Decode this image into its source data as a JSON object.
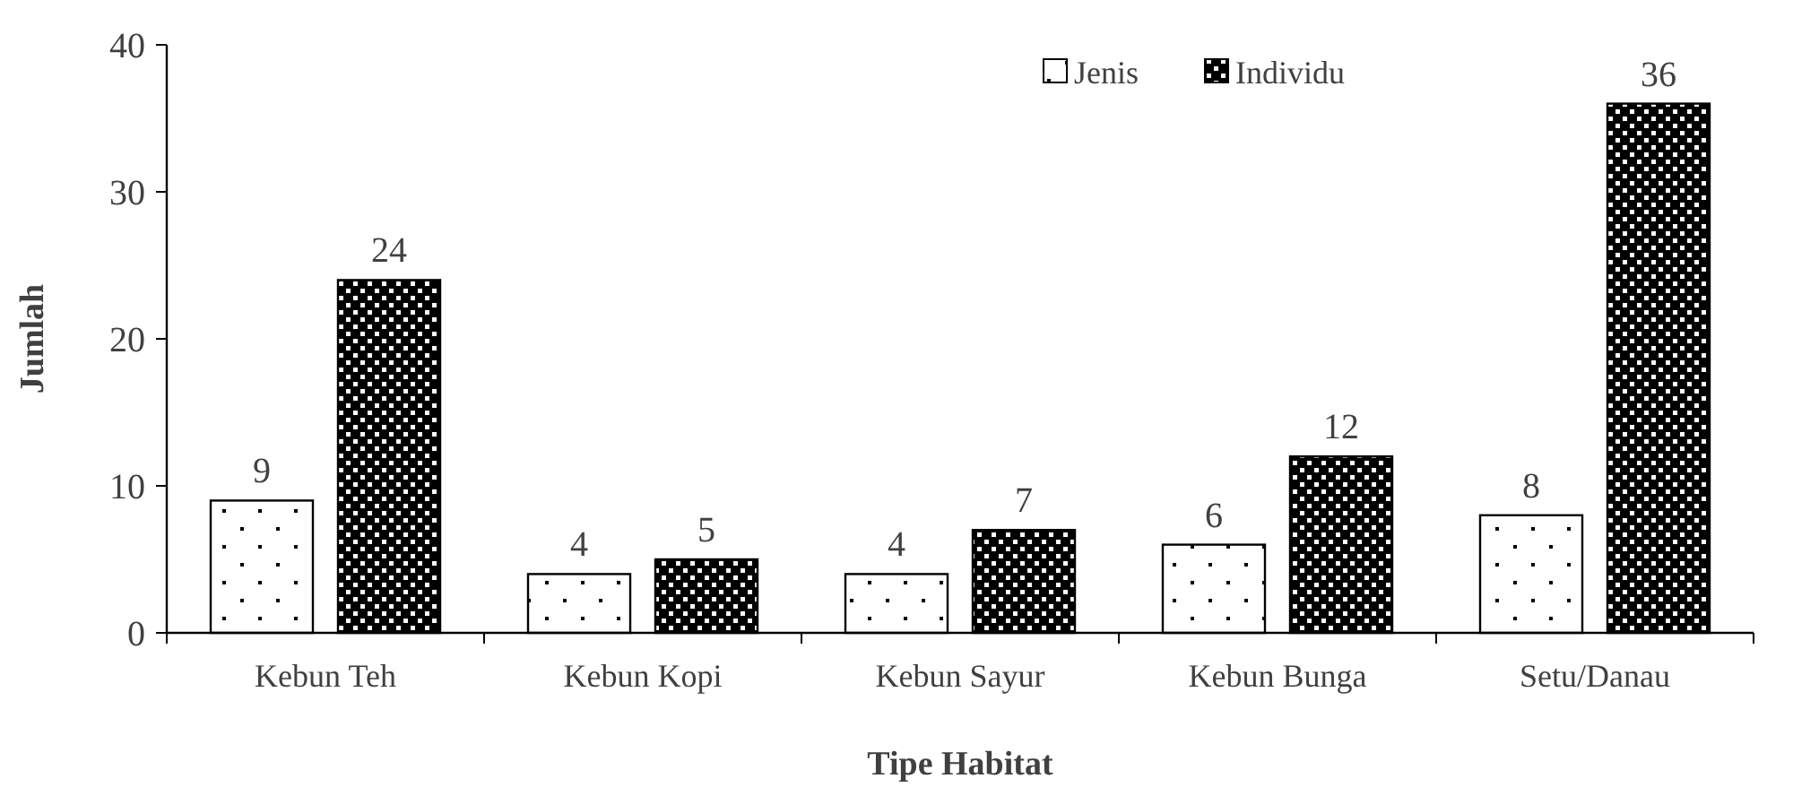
{
  "chart_data": {
    "type": "bar",
    "xlabel": "Tipe Habitat",
    "ylabel": "Jumlah",
    "categories": [
      "Kebun Teh",
      "Kebun Kopi",
      "Kebun Sayur",
      "Kebun Bunga",
      "Setu/Danau"
    ],
    "series": [
      {
        "name": "Jenis",
        "color": "#ffffff",
        "values": [
          9,
          4,
          4,
          6,
          8
        ]
      },
      {
        "name": "Individu",
        "color": "#000000",
        "values": [
          24,
          5,
          7,
          12,
          36
        ]
      }
    ],
    "ylim": [
      0,
      40
    ],
    "yticks": [
      0,
      10,
      20,
      30,
      40
    ],
    "data_labels": true,
    "legend": "top right",
    "grid": false
  }
}
